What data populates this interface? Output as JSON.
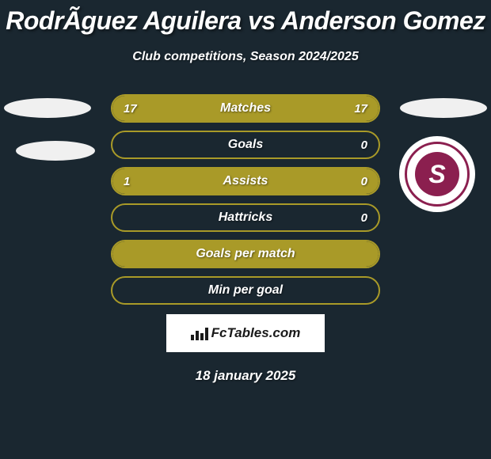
{
  "title": "RodrÃ­guez Aguilera vs Anderson Gomez",
  "subtitle": "Club competitions, Season 2024/2025",
  "stats": [
    {
      "label": "Matches",
      "left_value": "17",
      "right_value": "17",
      "left_fill_pct": 50,
      "right_fill_pct": 50
    },
    {
      "label": "Goals",
      "left_value": "",
      "right_value": "0",
      "left_fill_pct": 0,
      "right_fill_pct": 0
    },
    {
      "label": "Assists",
      "left_value": "1",
      "right_value": "0",
      "left_fill_pct": 100,
      "right_fill_pct": 0
    },
    {
      "label": "Hattricks",
      "left_value": "",
      "right_value": "0",
      "left_fill_pct": 0,
      "right_fill_pct": 0
    },
    {
      "label": "Goals per match",
      "left_value": "",
      "right_value": "",
      "left_fill_pct": 100,
      "right_fill_pct": 0
    },
    {
      "label": "Min per goal",
      "left_value": "",
      "right_value": "",
      "left_fill_pct": 0,
      "right_fill_pct": 0
    }
  ],
  "badge": {
    "letter": "S",
    "border_color": "#8b1f4f",
    "fill_color": "#8b1f4f"
  },
  "footer": {
    "brand": "FcTables.com"
  },
  "date": "18 january 2025",
  "colors": {
    "background": "#1a2730",
    "bar_fill": "#a99a28",
    "bar_border": "#a99a28",
    "text": "#ffffff"
  }
}
